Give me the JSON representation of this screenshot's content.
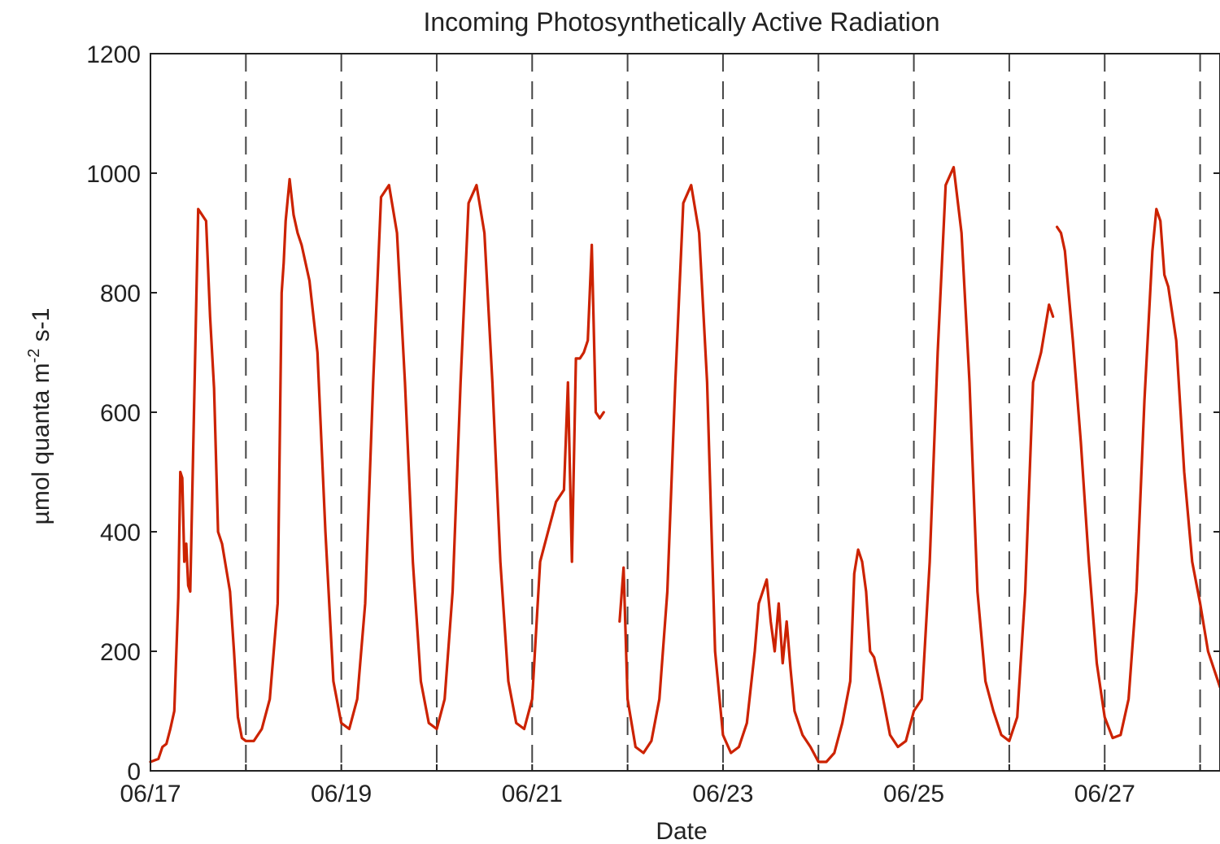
{
  "chart_data": {
    "type": "line",
    "title": "Incoming Photosynthetically Active Radiation",
    "xlabel": "Date",
    "ylabel_parts": {
      "before_sup": "µmol quanta m",
      "sup": "-2",
      "after_sup": " s-1"
    },
    "xlim": [
      "06/17 00:00",
      "06/28 05:00"
    ],
    "ylim": [
      0,
      1200
    ],
    "yticks": [
      0,
      200,
      400,
      600,
      800,
      1000,
      1200
    ],
    "xtick_labels": [
      "06/17",
      "06/19",
      "06/21",
      "06/23",
      "06/25",
      "06/27"
    ],
    "xtick_dates": [
      "06/17",
      "06/18",
      "06/19",
      "06/20",
      "06/21",
      "06/22",
      "06/23",
      "06/24",
      "06/25",
      "06/26",
      "06/27",
      "06/28"
    ],
    "grid": "vertical dashed at each day",
    "line_color": "#cc2200",
    "series": [
      {
        "x": [
          "06/17 00:00",
          "06/17 02:00",
          "06/17 03:00",
          "06/17 04:00",
          "06/17 05:00",
          "06/17 06:00",
          "06/17 07:00",
          "06/17 07:30",
          "06/17 08:00",
          "06/17 08:30",
          "06/17 09:00",
          "06/17 09:30",
          "06/17 10:00",
          "06/17 11:00",
          "06/17 12:00",
          "06/17 14:00",
          "06/17 15:00",
          "06/17 16:00",
          "06/17 17:00",
          "06/17 18:00",
          "06/17 19:00",
          "06/17 20:00",
          "06/17 21:00",
          "06/17 22:00",
          "06/17 23:00",
          "06/18 00:00",
          "06/18 02:00",
          "06/18 04:00",
          "06/18 06:00",
          "06/18 08:00",
          "06/18 09:00",
          "06/18 09:30",
          "06/18 10:00",
          "06/18 11:00",
          "06/18 12:00",
          "06/18 13:00",
          "06/18 14:00",
          "06/18 16:00",
          "06/18 18:00",
          "06/18 20:00",
          "06/18 22:00",
          "06/19 00:00",
          "06/19 02:00",
          "06/19 04:00",
          "06/19 06:00",
          "06/19 08:00",
          "06/19 10:00",
          "06/19 12:00",
          "06/19 14:00",
          "06/19 16:00",
          "06/19 18:00",
          "06/19 20:00",
          "06/19 22:00",
          "06/20 00:00",
          "06/20 02:00",
          "06/20 04:00",
          "06/20 06:00",
          "06/20 08:00",
          "06/20 10:00",
          "06/20 12:00",
          "06/20 14:00",
          "06/20 16:00",
          "06/20 18:00",
          "06/20 20:00",
          "06/20 22:00",
          "06/21 00:00",
          "06/21 02:00",
          "06/21 04:00",
          "06/21 06:00",
          "06/21 08:00",
          "06/21 09:00",
          "06/21 10:00",
          "06/21 11:00",
          "06/21 12:00",
          "06/21 13:00",
          "06/21 14:00",
          "06/21 15:00",
          "06/21 16:00",
          "06/21 17:00",
          "06/21 18:00"
        ],
        "y": [
          15,
          20,
          40,
          45,
          70,
          100,
          290,
          500,
          490,
          350,
          380,
          310,
          300,
          620,
          940,
          920,
          760,
          640,
          400,
          380,
          340,
          300,
          200,
          90,
          55,
          50,
          50,
          70,
          120,
          280,
          800,
          850,
          920,
          990,
          930,
          900,
          880,
          820,
          700,
          400,
          150,
          80,
          70,
          120,
          280,
          650,
          960,
          980,
          900,
          650,
          350,
          150,
          80,
          70,
          120,
          300,
          650,
          950,
          980,
          900,
          650,
          350,
          150,
          80,
          70,
          120,
          350,
          400,
          450,
          470,
          650,
          350,
          690,
          690,
          700,
          720,
          880,
          600,
          590,
          600
        ]
      },
      {
        "x": [
          "06/21 22:00",
          "06/21 23:00",
          "06/22 00:00",
          "06/22 02:00",
          "06/22 04:00",
          "06/22 06:00",
          "06/22 08:00",
          "06/22 10:00",
          "06/22 12:00",
          "06/22 14:00",
          "06/22 16:00",
          "06/22 18:00",
          "06/22 20:00",
          "06/22 22:00",
          "06/23 00:00",
          "06/23 02:00",
          "06/23 04:00",
          "06/23 06:00",
          "06/23 08:00",
          "06/23 09:00",
          "06/23 10:00",
          "06/23 11:00",
          "06/23 12:00",
          "06/23 13:00",
          "06/23 14:00",
          "06/23 15:00",
          "06/23 16:00",
          "06/23 17:00",
          "06/23 18:00",
          "06/23 20:00",
          "06/23 22:00",
          "06/24 00:00",
          "06/24 02:00",
          "06/24 04:00",
          "06/24 06:00",
          "06/24 08:00",
          "06/24 09:00",
          "06/24 10:00",
          "06/24 11:00",
          "06/24 12:00",
          "06/24 13:00",
          "06/24 14:00",
          "06/24 16:00",
          "06/24 18:00",
          "06/24 20:00",
          "06/24 22:00",
          "06/25 00:00",
          "06/25 02:00",
          "06/25 04:00",
          "06/25 06:00",
          "06/25 08:00",
          "06/25 10:00",
          "06/25 12:00",
          "06/25 14:00",
          "06/25 16:00",
          "06/25 18:00",
          "06/25 20:00",
          "06/25 22:00",
          "06/26 00:00",
          "06/26 02:00",
          "06/26 04:00",
          "06/26 06:00",
          "06/26 08:00",
          "06/26 10:00",
          "06/26 11:00"
        ],
        "y": [
          250,
          340,
          120,
          40,
          30,
          50,
          120,
          300,
          650,
          950,
          980,
          900,
          650,
          200,
          60,
          30,
          40,
          80,
          200,
          280,
          300,
          320,
          250,
          200,
          280,
          180,
          250,
          170,
          100,
          60,
          40,
          15,
          15,
          30,
          80,
          150,
          330,
          370,
          350,
          300,
          200,
          190,
          130,
          60,
          40,
          50,
          100,
          120,
          350,
          700,
          980,
          1010,
          900,
          650,
          300,
          150,
          100,
          60,
          50,
          90,
          300,
          650,
          700,
          780,
          760
        ]
      },
      {
        "x": [
          "06/26 12:00",
          "06/26 13:00",
          "06/26 14:00",
          "06/26 16:00",
          "06/26 18:00",
          "06/26 20:00",
          "06/26 22:00",
          "06/27 00:00",
          "06/27 02:00",
          "06/27 04:00",
          "06/27 06:00",
          "06/27 08:00",
          "06/27 10:00",
          "06/27 12:00",
          "06/27 13:00",
          "06/27 14:00",
          "06/27 15:00",
          "06/27 16:00",
          "06/27 18:00",
          "06/27 20:00",
          "06/27 22:00",
          "06/28 00:00",
          "06/28 02:00",
          "06/28 05:00"
        ],
        "y": [
          910,
          900,
          870,
          720,
          550,
          350,
          180,
          90,
          55,
          60,
          120,
          300,
          620,
          870,
          940,
          920,
          830,
          810,
          720,
          500,
          350,
          280,
          200,
          140
        ]
      }
    ]
  }
}
